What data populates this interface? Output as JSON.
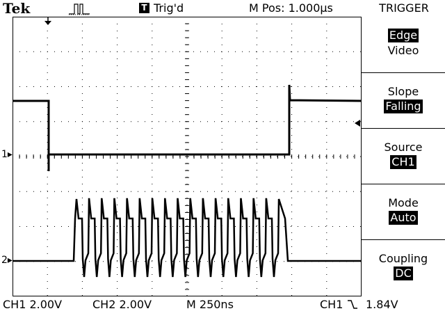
{
  "header": {
    "brand": "Tek",
    "trigger_badge": "T",
    "trigger_status": "Trig'd",
    "m_pos": "M Pos: 1.000µs",
    "menu_title": "TRIGGER"
  },
  "menu": {
    "type": {
      "options": [
        "Edge",
        "Video"
      ],
      "selected": "Edge"
    },
    "slope": {
      "label": "Slope",
      "value": "Falling"
    },
    "source": {
      "label": "Source",
      "value": "CH1"
    },
    "mode": {
      "label": "Mode",
      "value": "Auto"
    },
    "coupling": {
      "label": "Coupling",
      "value": "DC"
    }
  },
  "status": {
    "ch1_scale": "CH1  2.00V",
    "ch2_scale": "CH2  2.00V",
    "timebase": "M  250ns",
    "trigger_source": "CH1",
    "trigger_level": "1.84V"
  },
  "markers": {
    "ch1": "1",
    "ch2": "2"
  },
  "icons": [
    "pulse-trigger-icon",
    "falling-edge-icon",
    "trigger-position-icon",
    "trigger-level-icon"
  ]
}
